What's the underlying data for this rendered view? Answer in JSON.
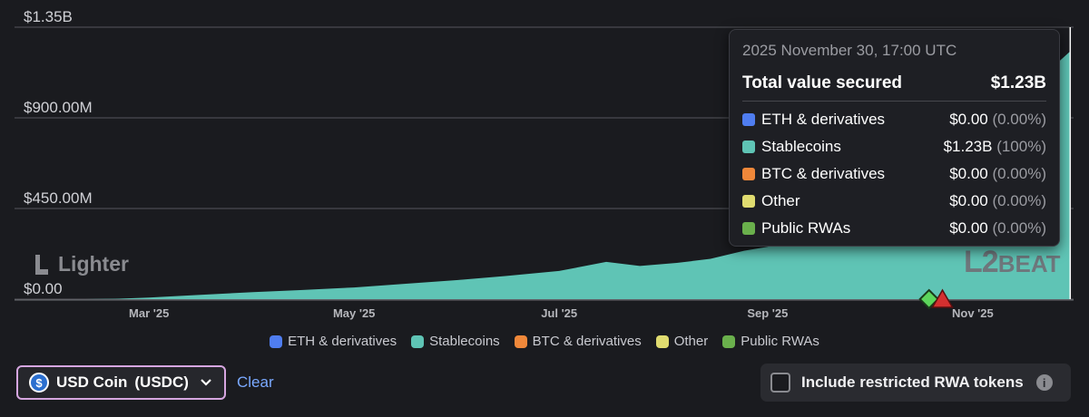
{
  "chart_data": {
    "type": "area",
    "title": "",
    "xlabel": "",
    "ylabel": "",
    "x_tick_labels": [
      "Mar '25",
      "May '25",
      "Jul '25",
      "Sep '25",
      "Nov '25"
    ],
    "y_tick_labels": [
      "$1.35B",
      "$900.00M",
      "$450.00M",
      "$0.00"
    ],
    "ylim": [
      0,
      1350000000
    ],
    "grid": true,
    "x": [
      "2025-02-10",
      "2025-02-20",
      "2025-03-01",
      "2025-03-15",
      "2025-04-01",
      "2025-04-15",
      "2025-05-01",
      "2025-05-15",
      "2025-06-01",
      "2025-06-15",
      "2025-07-01",
      "2025-07-15",
      "2025-07-25",
      "2025-08-05",
      "2025-08-15",
      "2025-08-25",
      "2025-09-01",
      "2025-09-10",
      "2025-09-20",
      "2025-10-01",
      "2025-10-10",
      "2025-10-20",
      "2025-11-01",
      "2025-11-10",
      "2025-11-20",
      "2025-11-30"
    ],
    "series": [
      {
        "name": "Stablecoins",
        "color": "#5fc4b5",
        "values": [
          0,
          2000000,
          8000000,
          20000000,
          35000000,
          45000000,
          58000000,
          75000000,
          95000000,
          115000000,
          140000000,
          185000000,
          165000000,
          180000000,
          200000000,
          240000000,
          260000000,
          300000000,
          340000000,
          400000000,
          520000000,
          650000000,
          820000000,
          950000000,
          1080000000,
          1230000000
        ]
      }
    ],
    "annotations": [
      {
        "type": "diamond",
        "color": "#5cd65c",
        "date": "2025-10-19"
      },
      {
        "type": "triangle",
        "color": "#d43030",
        "date": "2025-10-23"
      }
    ]
  },
  "watermark": {
    "left": "Lighter",
    "right_l": "L",
    "right_2": "2",
    "right_beat": "BEAT"
  },
  "tooltip": {
    "date": "2025 November 30, 17:00 UTC",
    "total_label": "Total value secured",
    "total_value": "$1.23B",
    "rows": [
      {
        "label": "ETH & derivatives",
        "value": "$0.00",
        "pct": "(0.00%)",
        "color": "#4f7df0"
      },
      {
        "label": "Stablecoins",
        "value": "$1.23B",
        "pct": "(100%)",
        "color": "#5fc4b5"
      },
      {
        "label": "BTC & derivatives",
        "value": "$0.00",
        "pct": "(0.00%)",
        "color": "#f0883a"
      },
      {
        "label": "Other",
        "value": "$0.00",
        "pct": "(0.00%)",
        "color": "#e0dc70"
      },
      {
        "label": "Public RWAs",
        "value": "$0.00",
        "pct": "(0.00%)",
        "color": "#6ab04c"
      }
    ]
  },
  "legend": [
    {
      "label": "ETH & derivatives",
      "color": "#4f7df0"
    },
    {
      "label": "Stablecoins",
      "color": "#5fc4b5"
    },
    {
      "label": "BTC & derivatives",
      "color": "#f0883a"
    },
    {
      "label": "Other",
      "color": "#e0dc70"
    },
    {
      "label": "Public RWAs",
      "color": "#6ab04c"
    }
  ],
  "controls": {
    "token_name": "USD Coin",
    "token_symbol": "(USDC)",
    "token_icon": "usdc-icon",
    "clear_label": "Clear",
    "rwa_label": "Include restricted RWA tokens",
    "rwa_checked": false
  }
}
